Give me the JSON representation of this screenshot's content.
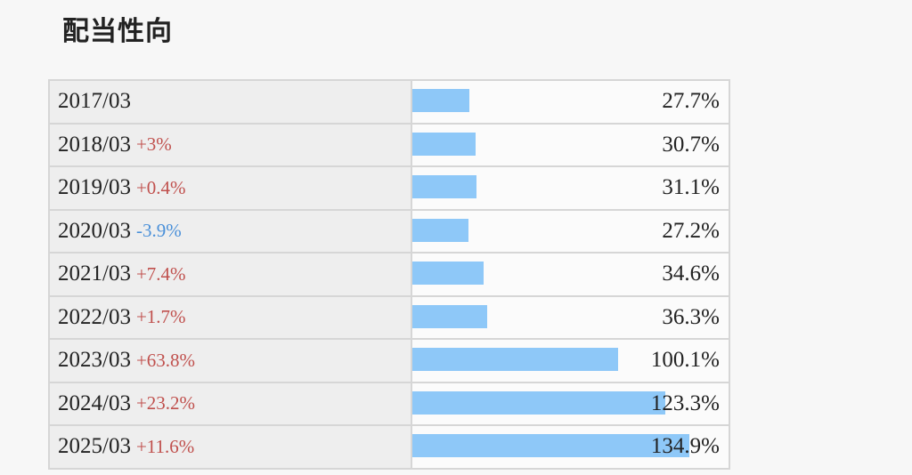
{
  "title": "配当性向",
  "chart_data": {
    "type": "bar",
    "orientation": "horizontal",
    "title": "配当性向",
    "rows": [
      {
        "period": "2017/03",
        "change": "",
        "value": 27.7,
        "value_label": "27.7%"
      },
      {
        "period": "2018/03",
        "change": "+3%",
        "value": 30.7,
        "value_label": "30.7%"
      },
      {
        "period": "2019/03",
        "change": "+0.4%",
        "value": 31.1,
        "value_label": "31.1%"
      },
      {
        "period": "2020/03",
        "change": "-3.9%",
        "value": 27.2,
        "value_label": "27.2%"
      },
      {
        "period": "2021/03",
        "change": "+7.4%",
        "value": 34.6,
        "value_label": "34.6%"
      },
      {
        "period": "2022/03",
        "change": "+1.7%",
        "value": 36.3,
        "value_label": "36.3%"
      },
      {
        "period": "2023/03",
        "change": "+63.8%",
        "value": 100.1,
        "value_label": "100.1%"
      },
      {
        "period": "2024/03",
        "change": "+23.2%",
        "value": 123.3,
        "value_label": "123.3%"
      },
      {
        "period": "2025/03",
        "change": "+11.6%",
        "value": 134.9,
        "value_label": "134.9%"
      }
    ],
    "xlim": [
      0,
      135
    ],
    "colors": {
      "bar": "#8ec8f8",
      "positive": "#c0504d",
      "negative": "#4a90d9"
    }
  }
}
